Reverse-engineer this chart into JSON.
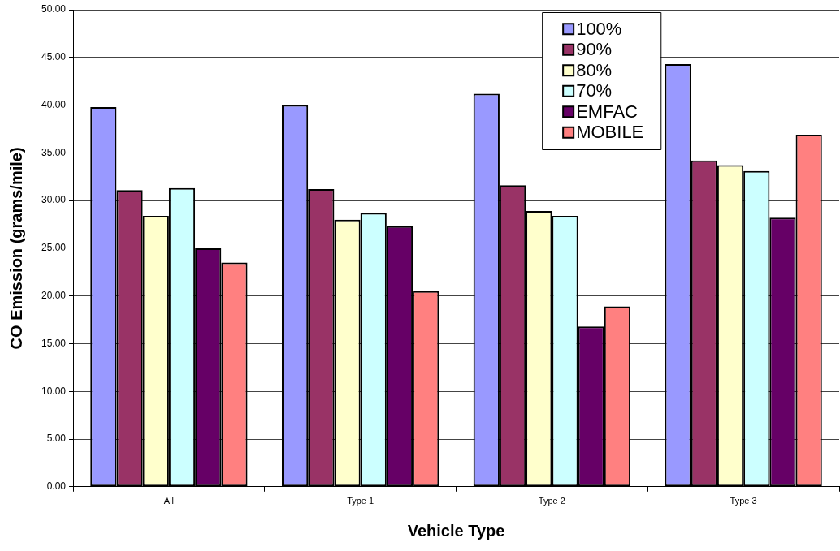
{
  "chart_data": {
    "type": "bar",
    "xlabel": "Vehicle Type",
    "ylabel": "CO Emission (grams/mile)",
    "categories": [
      "All",
      "Type 1",
      "Type 2",
      "Type 3"
    ],
    "series": [
      {
        "name": "100%",
        "color": "#9999ff",
        "values": [
          39.8,
          40.0,
          41.2,
          44.3
        ]
      },
      {
        "name": "90%",
        "color": "#993366",
        "values": [
          31.1,
          31.2,
          31.6,
          34.2
        ]
      },
      {
        "name": "80%",
        "color": "#ffffcc",
        "values": [
          28.4,
          28.0,
          28.9,
          33.7
        ]
      },
      {
        "name": "70%",
        "color": "#ccffff",
        "values": [
          31.3,
          28.7,
          28.4,
          33.1
        ]
      },
      {
        "name": "EMFAC",
        "color": "#660066",
        "values": [
          25.0,
          27.3,
          16.8,
          28.2
        ]
      },
      {
        "name": "MOBILE",
        "color": "#ff8080",
        "values": [
          23.5,
          20.5,
          18.9,
          36.9
        ]
      }
    ],
    "ylim": [
      0,
      50
    ],
    "yticks": [
      {
        "value": 0,
        "label": "0.00"
      },
      {
        "value": 5,
        "label": "5.00"
      },
      {
        "value": 10,
        "label": "10.00"
      },
      {
        "value": 15,
        "label": "15.00"
      },
      {
        "value": 20,
        "label": "20.00"
      },
      {
        "value": 25,
        "label": "25.00"
      },
      {
        "value": 30,
        "label": "30.00"
      },
      {
        "value": 35,
        "label": "35.00"
      },
      {
        "value": 40,
        "label": "40.00"
      },
      {
        "value": 45,
        "label": "45.00"
      },
      {
        "value": 50,
        "label": "50.00"
      }
    ],
    "grid": "y",
    "legend": "top right"
  }
}
